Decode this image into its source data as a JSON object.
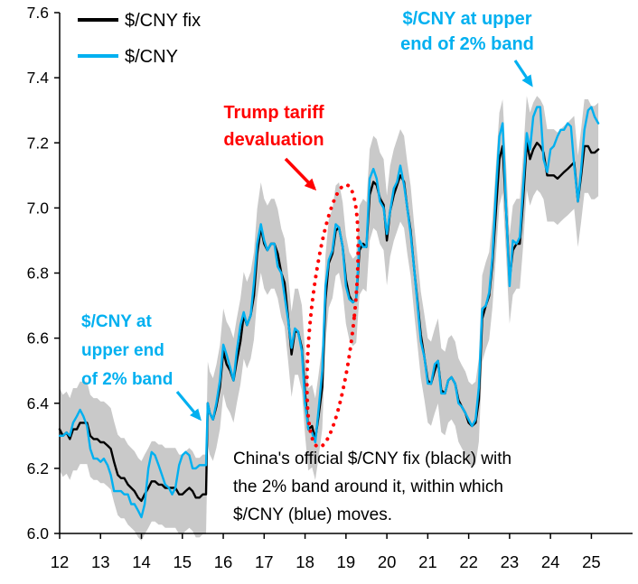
{
  "legend": {
    "fix_label": "$/CNY fix",
    "spot_label": "$/CNY"
  },
  "annotations": {
    "trump": {
      "line1": "Trump tariff",
      "line2": "devaluation"
    },
    "upper_band_right": {
      "line1": "$/CNY at upper",
      "line2": "end of 2% band"
    },
    "upper_band_left": {
      "line1": "$/CNY at",
      "line2": "upper end",
      "line3": "of 2% band"
    }
  },
  "caption": {
    "line1": "China's official $/CNY fix (black) with",
    "line2": "the 2% band around it, within which",
    "line3": "$/CNY (blue) moves."
  },
  "chart_data": {
    "type": "line",
    "title": "",
    "xlabel": "",
    "ylabel": "",
    "legend_position": "top-left",
    "grid": false,
    "band_note": "2% band around the $/CNY fix",
    "band_pct": 0.02,
    "series": [
      {
        "name": "$/CNY fix",
        "color_key": "fix"
      },
      {
        "name": "$/CNY",
        "color_key": "spot"
      }
    ],
    "xlim": [
      12,
      25.3
    ],
    "ylim": [
      6.0,
      7.6
    ],
    "xticks": [
      12,
      13,
      14,
      15,
      16,
      17,
      18,
      19,
      20,
      21,
      22,
      23,
      24,
      25
    ],
    "yticks": [
      6.0,
      6.2,
      6.4,
      6.6,
      6.8,
      7.0,
      7.2,
      7.4,
      7.6
    ],
    "colors": {
      "fix": "#000000",
      "spot": "#00B0F0",
      "band": "#C9C9C9",
      "red": "#FF0000",
      "axis": "#000000"
    },
    "x": [
      12.0,
      12.08,
      12.17,
      12.25,
      12.33,
      12.42,
      12.5,
      12.58,
      12.67,
      12.75,
      12.83,
      12.92,
      13.0,
      13.08,
      13.17,
      13.25,
      13.33,
      13.42,
      13.5,
      13.58,
      13.67,
      13.75,
      13.83,
      13.92,
      14.0,
      14.08,
      14.17,
      14.25,
      14.33,
      14.42,
      14.5,
      14.58,
      14.67,
      14.75,
      14.83,
      14.92,
      15.0,
      15.08,
      15.17,
      15.25,
      15.33,
      15.42,
      15.5,
      15.58,
      15.62,
      15.67,
      15.75,
      15.83,
      15.92,
      16.0,
      16.08,
      16.17,
      16.25,
      16.33,
      16.42,
      16.5,
      16.58,
      16.67,
      16.75,
      16.83,
      16.92,
      17.0,
      17.08,
      17.17,
      17.25,
      17.33,
      17.42,
      17.5,
      17.58,
      17.67,
      17.75,
      17.83,
      17.92,
      18.0,
      18.08,
      18.17,
      18.25,
      18.33,
      18.42,
      18.5,
      18.58,
      18.67,
      18.75,
      18.83,
      18.92,
      19.0,
      19.08,
      19.17,
      19.25,
      19.33,
      19.42,
      19.5,
      19.58,
      19.67,
      19.75,
      19.83,
      19.92,
      20.0,
      20.08,
      20.17,
      20.25,
      20.33,
      20.42,
      20.5,
      20.58,
      20.67,
      20.75,
      20.83,
      20.92,
      21.0,
      21.08,
      21.17,
      21.25,
      21.33,
      21.42,
      21.5,
      21.58,
      21.67,
      21.75,
      21.83,
      21.92,
      22.0,
      22.08,
      22.17,
      22.25,
      22.33,
      22.42,
      22.5,
      22.58,
      22.67,
      22.75,
      22.83,
      22.92,
      23.0,
      23.08,
      23.17,
      23.25,
      23.33,
      23.42,
      23.5,
      23.58,
      23.67,
      23.75,
      23.83,
      23.92,
      24.0,
      24.08,
      24.17,
      24.25,
      24.33,
      24.42,
      24.5,
      24.58,
      24.67,
      24.75,
      24.83,
      24.92,
      25.0,
      25.08,
      25.17
    ],
    "fix": [
      6.32,
      6.3,
      6.31,
      6.29,
      6.32,
      6.32,
      6.34,
      6.34,
      6.34,
      6.3,
      6.29,
      6.29,
      6.28,
      6.28,
      6.27,
      6.26,
      6.22,
      6.18,
      6.17,
      6.17,
      6.15,
      6.14,
      6.13,
      6.11,
      6.1,
      6.12,
      6.14,
      6.16,
      6.16,
      6.15,
      6.15,
      6.14,
      6.14,
      6.14,
      6.14,
      6.12,
      6.12,
      6.13,
      6.14,
      6.13,
      6.11,
      6.11,
      6.12,
      6.12,
      6.4,
      6.37,
      6.35,
      6.39,
      6.45,
      6.56,
      6.52,
      6.5,
      6.47,
      6.53,
      6.59,
      6.67,
      6.64,
      6.67,
      6.73,
      6.86,
      6.94,
      6.89,
      6.87,
      6.89,
      6.89,
      6.86,
      6.8,
      6.77,
      6.67,
      6.55,
      6.62,
      6.62,
      6.57,
      6.43,
      6.32,
      6.33,
      6.29,
      6.36,
      6.45,
      6.72,
      6.83,
      6.86,
      6.93,
      6.94,
      6.88,
      6.78,
      6.73,
      6.71,
      6.72,
      6.87,
      6.89,
      6.88,
      7.04,
      7.08,
      7.07,
      7.03,
      7.01,
      6.9,
      6.99,
      7.04,
      7.07,
      7.1,
      7.08,
      7.0,
      6.93,
      6.81,
      6.71,
      6.61,
      6.54,
      6.47,
      6.46,
      6.5,
      6.53,
      6.44,
      6.43,
      6.47,
      6.48,
      6.46,
      6.41,
      6.39,
      6.37,
      6.34,
      6.33,
      6.34,
      6.41,
      6.66,
      6.7,
      6.73,
      6.83,
      7.0,
      7.15,
      7.19,
      6.98,
      6.78,
      6.87,
      6.89,
      6.89,
      7.02,
      7.2,
      7.15,
      7.18,
      7.2,
      7.19,
      7.17,
      7.1,
      7.1,
      7.1,
      7.09,
      7.1,
      7.11,
      7.12,
      7.13,
      7.14,
      7.02,
      7.1,
      7.19,
      7.19,
      7.17,
      7.17,
      7.18
    ],
    "spot": [
      6.3,
      6.3,
      6.31,
      6.3,
      6.34,
      6.36,
      6.38,
      6.36,
      6.33,
      6.26,
      6.23,
      6.23,
      6.22,
      6.23,
      6.21,
      6.18,
      6.13,
      6.13,
      6.13,
      6.12,
      6.12,
      6.09,
      6.09,
      6.07,
      6.05,
      6.09,
      6.2,
      6.25,
      6.24,
      6.21,
      6.18,
      6.15,
      6.14,
      6.12,
      6.14,
      6.21,
      6.24,
      6.25,
      6.24,
      6.2,
      6.2,
      6.21,
      6.21,
      6.21,
      6.4,
      6.37,
      6.35,
      6.4,
      6.47,
      6.58,
      6.55,
      6.51,
      6.47,
      6.56,
      6.64,
      6.68,
      6.64,
      6.67,
      6.77,
      6.89,
      6.95,
      6.9,
      6.87,
      6.89,
      6.89,
      6.82,
      6.8,
      6.73,
      6.66,
      6.57,
      6.63,
      6.62,
      6.56,
      6.4,
      6.32,
      6.31,
      6.28,
      6.38,
      6.5,
      6.76,
      6.84,
      6.87,
      6.95,
      6.94,
      6.88,
      6.76,
      6.72,
      6.71,
      6.72,
      6.9,
      6.88,
      6.88,
      7.09,
      7.12,
      7.09,
      7.02,
      7.0,
      6.92,
      6.99,
      7.06,
      7.08,
      7.13,
      7.07,
      7.0,
      6.92,
      6.81,
      6.7,
      6.59,
      6.54,
      6.46,
      6.46,
      6.52,
      6.53,
      6.43,
      6.43,
      6.47,
      6.48,
      6.46,
      6.4,
      6.39,
      6.37,
      6.35,
      6.33,
      6.35,
      6.45,
      6.69,
      6.7,
      6.74,
      6.85,
      7.06,
      7.22,
      7.26,
      6.98,
      6.76,
      6.9,
      6.89,
      6.91,
      7.06,
      7.23,
      7.18,
      7.28,
      7.31,
      7.31,
      7.15,
      7.11,
      7.18,
      7.19,
      7.22,
      7.24,
      7.24,
      7.26,
      7.25,
      7.13,
      7.02,
      7.12,
      7.24,
      7.3,
      7.31,
      7.28,
      7.26
    ]
  }
}
